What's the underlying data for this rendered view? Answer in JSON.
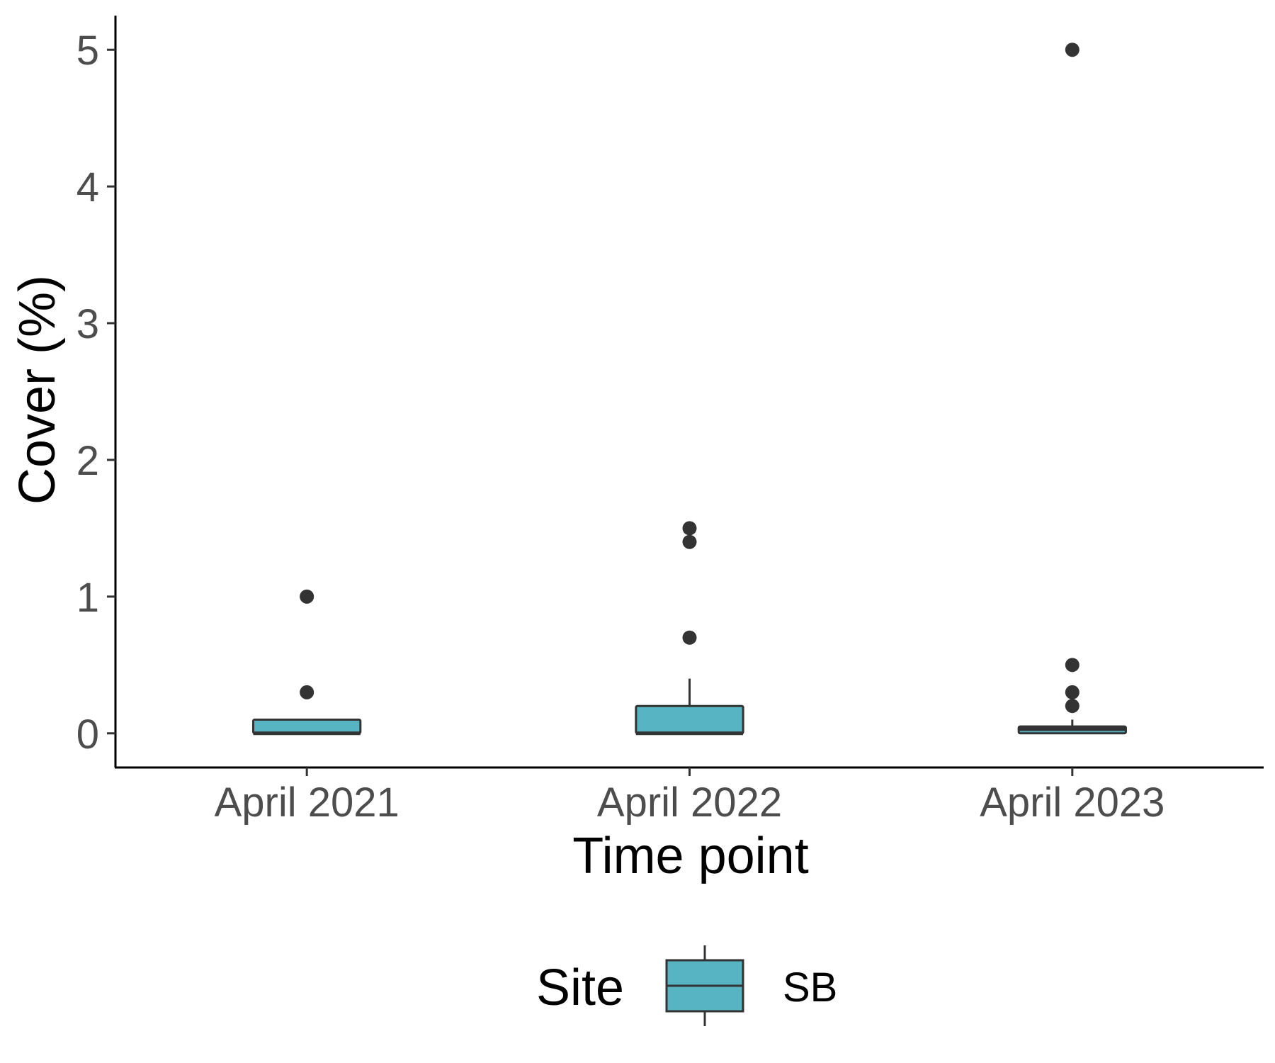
{
  "chart_data": {
    "type": "boxplot",
    "xlabel": "Time point",
    "ylabel": "Cover (%)",
    "ylim": [
      -0.25,
      5.25
    ],
    "yticks": [
      0,
      1,
      2,
      3,
      4,
      5
    ],
    "categories": [
      "April 2021",
      "April 2022",
      "April 2023"
    ],
    "series": [
      {
        "name": "SB",
        "color": "#56b4c3",
        "boxes": [
          {
            "category": "April 2021",
            "min": 0,
            "q1": 0,
            "median": 0,
            "q3": 0.1,
            "max": 0.1,
            "outliers": [
              0.3,
              1.0
            ]
          },
          {
            "category": "April 2022",
            "min": 0,
            "q1": 0,
            "median": 0,
            "q3": 0.2,
            "max": 0.4,
            "outliers": [
              0.7,
              1.4,
              1.5
            ]
          },
          {
            "category": "April 2023",
            "min": 0,
            "q1": 0,
            "median": 0.03,
            "q3": 0.05,
            "max": 0.1,
            "outliers": [
              0.2,
              0.3,
              0.5,
              5.0
            ]
          }
        ]
      }
    ],
    "legend": {
      "title": "Site",
      "position": "bottom",
      "entries": [
        "SB"
      ]
    },
    "grid": false
  }
}
